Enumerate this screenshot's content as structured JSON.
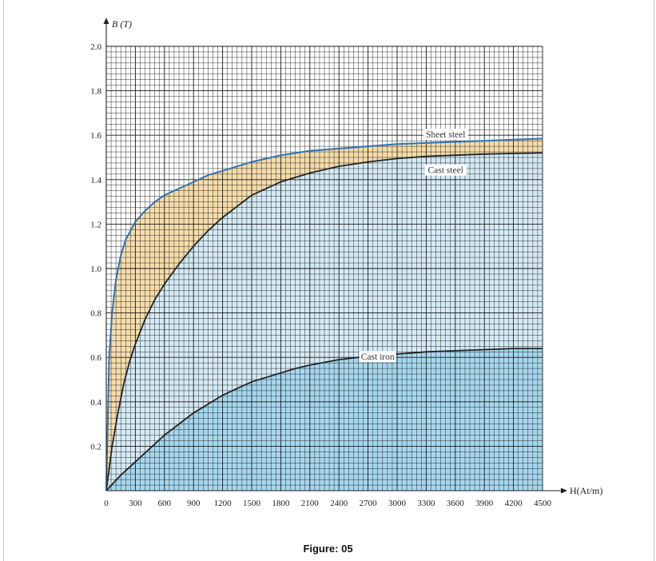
{
  "figure": {
    "caption": "Figure: 05"
  },
  "colors": {
    "grid": "#1a1a1a",
    "sheet_steel_curve": "#2f73b0",
    "cast_curves": "#222222",
    "sheet_band_fill": "#f5dcaa",
    "cast_steel_band_fill": "#d5eaf5",
    "cast_iron_fill": "#a6d7ee",
    "label_bg": "#ffffff"
  },
  "chart_data": {
    "type": "line",
    "title": "",
    "xlabel": "H(At/m)",
    "ylabel": "B (T)",
    "xlim": [
      0,
      4500
    ],
    "ylim": [
      0,
      2.0
    ],
    "x_ticks": [
      0,
      300,
      600,
      900,
      1200,
      1500,
      1800,
      2100,
      2400,
      2700,
      3000,
      3300,
      3600,
      3900,
      4200,
      4500
    ],
    "y_ticks": [
      0.2,
      0.4,
      0.6,
      0.8,
      1.0,
      1.2,
      1.4,
      1.6,
      1.8,
      2.0
    ],
    "y_tick_labels": [
      "0.2",
      "0.4",
      "0.6",
      "0.8",
      "1.0",
      "1.2",
      "1.4",
      "1.6",
      "1.8",
      "2.0"
    ],
    "x_origin_label": "0",
    "grid": true,
    "series": [
      {
        "name": "Sheet steel",
        "label_at": [
          3500,
          1.6
        ],
        "points": [
          [
            0,
            0
          ],
          [
            30,
            0.6
          ],
          [
            60,
            0.8
          ],
          [
            100,
            0.95
          ],
          [
            150,
            1.06
          ],
          [
            200,
            1.13
          ],
          [
            300,
            1.21
          ],
          [
            400,
            1.26
          ],
          [
            500,
            1.3
          ],
          [
            600,
            1.33
          ],
          [
            750,
            1.36
          ],
          [
            900,
            1.39
          ],
          [
            1050,
            1.42
          ],
          [
            1200,
            1.44
          ],
          [
            1500,
            1.48
          ],
          [
            1800,
            1.51
          ],
          [
            2100,
            1.53
          ],
          [
            2400,
            1.54
          ],
          [
            2700,
            1.55
          ],
          [
            3000,
            1.56
          ],
          [
            3300,
            1.565
          ],
          [
            3600,
            1.57
          ],
          [
            3900,
            1.575
          ],
          [
            4200,
            1.58
          ],
          [
            4500,
            1.585
          ]
        ]
      },
      {
        "name": "Cast steel",
        "label_at": [
          3500,
          1.44
        ],
        "points": [
          [
            0,
            0
          ],
          [
            60,
            0.2
          ],
          [
            120,
            0.35
          ],
          [
            180,
            0.48
          ],
          [
            240,
            0.58
          ],
          [
            300,
            0.66
          ],
          [
            400,
            0.77
          ],
          [
            500,
            0.86
          ],
          [
            600,
            0.93
          ],
          [
            750,
            1.02
          ],
          [
            900,
            1.1
          ],
          [
            1050,
            1.17
          ],
          [
            1200,
            1.23
          ],
          [
            1350,
            1.28
          ],
          [
            1500,
            1.33
          ],
          [
            1650,
            1.36
          ],
          [
            1800,
            1.39
          ],
          [
            1950,
            1.41
          ],
          [
            2100,
            1.43
          ],
          [
            2400,
            1.46
          ],
          [
            2700,
            1.48
          ],
          [
            3000,
            1.495
          ],
          [
            3300,
            1.505
          ],
          [
            3600,
            1.51
          ],
          [
            3900,
            1.515
          ],
          [
            4200,
            1.518
          ],
          [
            4500,
            1.52
          ]
        ]
      },
      {
        "name": "Cast iron",
        "label_at": [
          2800,
          0.6
        ],
        "points": [
          [
            0,
            0
          ],
          [
            150,
            0.07
          ],
          [
            300,
            0.13
          ],
          [
            450,
            0.19
          ],
          [
            600,
            0.25
          ],
          [
            750,
            0.3
          ],
          [
            900,
            0.35
          ],
          [
            1050,
            0.39
          ],
          [
            1200,
            0.43
          ],
          [
            1350,
            0.46
          ],
          [
            1500,
            0.49
          ],
          [
            1650,
            0.51
          ],
          [
            1800,
            0.53
          ],
          [
            1950,
            0.55
          ],
          [
            2100,
            0.565
          ],
          [
            2400,
            0.59
          ],
          [
            2700,
            0.605
          ],
          [
            3000,
            0.615
          ],
          [
            3300,
            0.625
          ],
          [
            3600,
            0.63
          ],
          [
            3900,
            0.635
          ],
          [
            4200,
            0.64
          ],
          [
            4500,
            0.64
          ]
        ]
      }
    ]
  }
}
